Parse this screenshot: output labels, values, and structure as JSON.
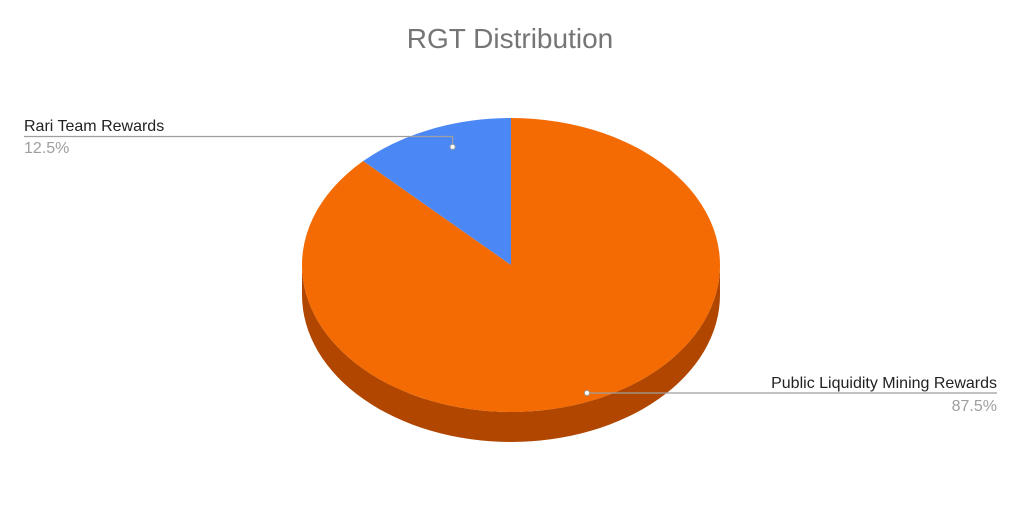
{
  "chart_data": {
    "type": "pie",
    "title": "RGT Distribution",
    "style": "3d",
    "slices": [
      {
        "label": "Public Liquidity Mining Rewards",
        "value": 87.5,
        "percent_label": "87.5%",
        "color": "#f46b04",
        "side_color": "#b04600"
      },
      {
        "label": "Rari Team Rewards",
        "value": 12.5,
        "percent_label": "12.5%",
        "color": "#4c88f5",
        "side_color": "#2f5fb8"
      }
    ],
    "legend": "none"
  }
}
